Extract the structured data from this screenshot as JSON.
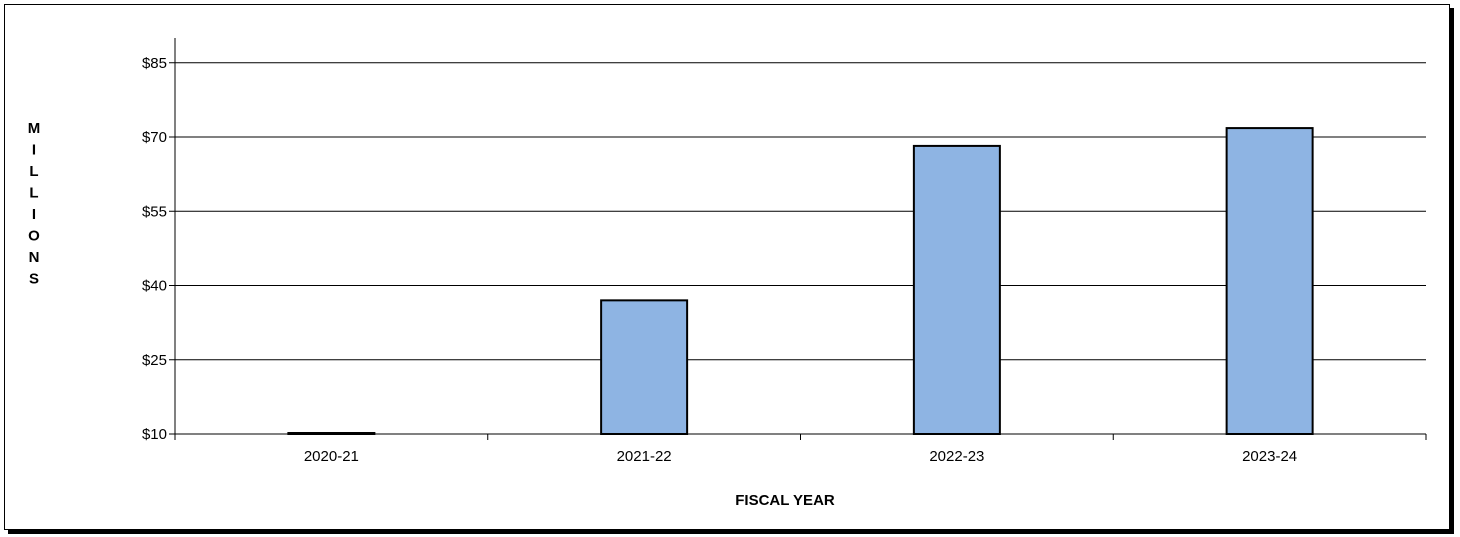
{
  "chart_data": {
    "type": "bar",
    "categories": [
      "2020-21",
      "2021-22",
      "2022-23",
      "2023-24"
    ],
    "values": [
      10.2,
      37.0,
      68.2,
      71.8
    ],
    "ylim": [
      10,
      90
    ],
    "yticks": [
      10,
      25,
      40,
      55,
      70,
      85
    ],
    "ytick_labels": [
      "$10",
      "$25",
      "$40",
      "$55",
      "$70",
      "$85"
    ],
    "xlabel": "FISCAL YEAR",
    "ylabel": "MILLIONS",
    "grid": true,
    "colors": {
      "bar_fill": "#8eb4e3",
      "bar_stroke": "#000000",
      "grid": "#000000"
    }
  }
}
